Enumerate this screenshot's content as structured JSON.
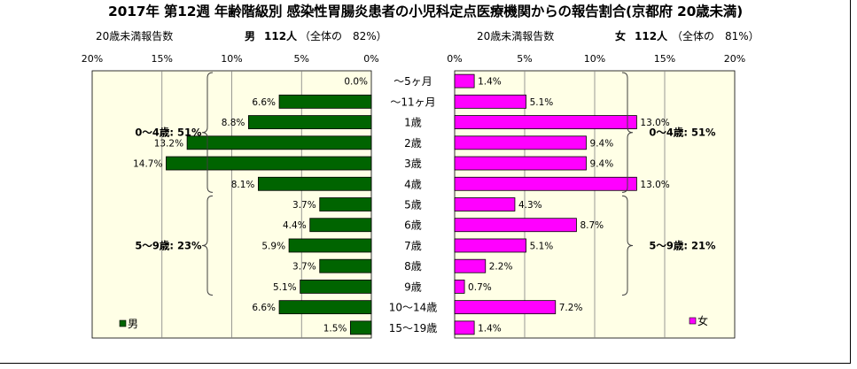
{
  "title": "2017年 第12週 年齢階級別 感染性胃腸炎患者の小児科定点医療機関からの報告割合(京都府 20歳未満)",
  "left_panel": {
    "count_label": "20歳未満報告数",
    "sex_label": "男",
    "count": "112人",
    "ratio_text": "（全体の　82%）"
  },
  "right_panel": {
    "count_label": "20歳未満報告数",
    "sex_label": "女",
    "count": "112人",
    "ratio_text": "（全体の　81%）"
  },
  "colors": {
    "male": "#006400",
    "female": "#ff00ff",
    "plot_bg": "#ffffe6"
  },
  "chart_data": [
    {
      "type": "bar",
      "orientation": "horizontal",
      "series": [
        {
          "name": "男",
          "values": [
            0.0,
            6.6,
            8.8,
            13.2,
            14.7,
            8.1,
            3.7,
            4.4,
            5.9,
            3.7,
            5.1,
            6.6,
            1.5
          ]
        }
      ],
      "categories": [
        "～5ヶ月",
        "～11ヶ月",
        "1歳",
        "2歳",
        "3歳",
        "4歳",
        "5歳",
        "6歳",
        "7歳",
        "8歳",
        "9歳",
        "10～14歳",
        "15～19歳"
      ],
      "value_labels": [
        "0.0%",
        "6.6%",
        "8.8%",
        "13.2%",
        "14.7%",
        "8.1%",
        "3.7%",
        "4.4%",
        "5.9%",
        "3.7%",
        "5.1%",
        "6.6%",
        "1.5%"
      ],
      "ticks": [
        "20%",
        "15%",
        "10%",
        "5%",
        "0%"
      ],
      "xlim": [
        20,
        0
      ],
      "grid": true,
      "legend": "bottom-left",
      "groups": [
        {
          "label": "0～4歳: 51%",
          "from": "～5ヶ月",
          "to": "4歳"
        },
        {
          "label": "5～9歳: 23%",
          "from": "5歳",
          "to": "9歳"
        }
      ]
    },
    {
      "type": "bar",
      "orientation": "horizontal",
      "series": [
        {
          "name": "女",
          "values": [
            1.4,
            5.1,
            13.0,
            9.4,
            9.4,
            13.0,
            4.3,
            8.7,
            5.1,
            2.2,
            0.7,
            7.2,
            1.4
          ]
        }
      ],
      "categories": [
        "～5ヶ月",
        "～11ヶ月",
        "1歳",
        "2歳",
        "3歳",
        "4歳",
        "5歳",
        "6歳",
        "7歳",
        "8歳",
        "9歳",
        "10～14歳",
        "15～19歳"
      ],
      "value_labels": [
        "1.4%",
        "5.1%",
        "13.0%",
        "9.4%",
        "9.4%",
        "13.0%",
        "4.3%",
        "8.7%",
        "5.1%",
        "2.2%",
        "0.7%",
        "7.2%",
        "1.4%"
      ],
      "ticks": [
        "0%",
        "5%",
        "10%",
        "15%",
        "20%"
      ],
      "xlim": [
        0,
        20
      ],
      "grid": true,
      "legend": "bottom-right",
      "groups": [
        {
          "label": "0～4歳: 51%",
          "from": "～5ヶ月",
          "to": "4歳"
        },
        {
          "label": "5～9歳: 21%",
          "from": "5歳",
          "to": "9歳"
        }
      ]
    }
  ]
}
